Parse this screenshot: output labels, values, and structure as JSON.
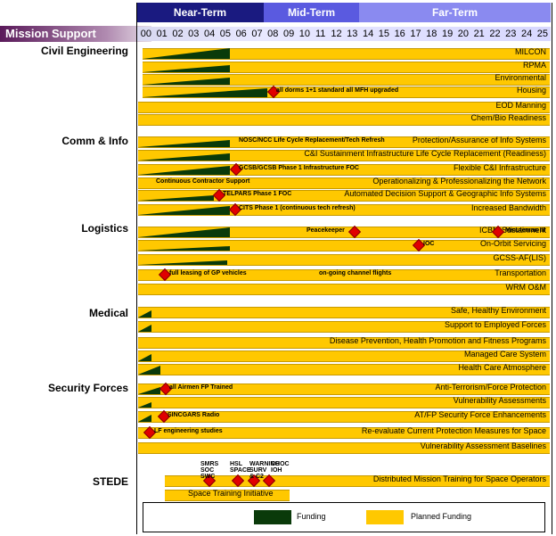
{
  "header": {
    "near_term": "Near-Term",
    "mid_term": "Mid-Term",
    "far_term": "Far-Term",
    "mission_support": "Mission Support",
    "years": [
      "00",
      "01",
      "02",
      "03",
      "04",
      "05",
      "06",
      "07",
      "08",
      "09",
      "10",
      "11",
      "12",
      "13",
      "14",
      "15",
      "16",
      "17",
      "18",
      "19",
      "20",
      "21",
      "22",
      "23",
      "24",
      "25"
    ]
  },
  "categories": {
    "civil": "Civil Engineering",
    "comm": "Comm & Info",
    "logistics": "Logistics",
    "medical": "Medical",
    "security": "Security Forces",
    "stede": "STEDE"
  },
  "rows": [
    {
      "label": "MILCON"
    },
    {
      "label": "RPMA"
    },
    {
      "label": "Environmental"
    },
    {
      "label": "Housing",
      "note": "all dorms 1+1 standard all MFH upgraded"
    },
    {
      "label": "EOD Manning"
    },
    {
      "label": "Chem/Bio Readiness"
    },
    {
      "label": "Protection/Assurance of Info Systems",
      "note": "NOSC/NCC Life Cycle Replacement/Tech Refresh"
    },
    {
      "label": "C&I Sustainment Infrastructure Life Cycle Replacement (Readiness)"
    },
    {
      "label": "Flexible C&I Infrastructure",
      "note": "GCSB/GCSB Phase 1 Infrastructure FOC"
    },
    {
      "label": "Operationalizing & Professionalizing the Network",
      "note": "Continuous Contractor Support"
    },
    {
      "label": "Automated Decision Support & Geographic Info Systems",
      "note": "TELPARS Phase 1 FOC"
    },
    {
      "label": "Increased Bandwidth",
      "note": "CITS Phase 1 (continuous tech refresh)"
    },
    {
      "label": "ICBM Sustainment",
      "note": "Peacekeeper",
      "note2": "Minuteman III"
    },
    {
      "label": "On-Orbit Servicing",
      "note": "IOC"
    },
    {
      "label": "GCSS-AF(LIS)"
    },
    {
      "label": "Transportation",
      "note": "full leasing of GP vehicles",
      "note2": "on-going channel flights"
    },
    {
      "label": "WRM O&M"
    },
    {
      "label": "Safe, Healthy Environment"
    },
    {
      "label": "Support to Employed Forces"
    },
    {
      "label": "Disease Prevention, Health Promotion and Fitness Programs"
    },
    {
      "label": "Managed Care System"
    },
    {
      "label": "Health Care Atmosphere"
    },
    {
      "label": "Anti-Terrorism/Force Protection",
      "note": "all Airmen FP Trained"
    },
    {
      "label": "Vulnerability Assessments"
    },
    {
      "label": "AT/FP Security Force Enhancements",
      "note": "SINCGARS Radio"
    },
    {
      "label": "Re-evaluate Current Protection Measures for Space",
      "note": "LF engineering studies"
    },
    {
      "label": "Vulnerability Assessment Baselines"
    },
    {
      "label": "Distributed Mission Training for Space Operators",
      "note": "SMRS SOC SWC",
      "note2": "HSL SPACE",
      "note3": "WARNING SURV & C2",
      "note4": "CHOC IOH"
    },
    {
      "label": "Space Training Initiative"
    }
  ],
  "legend": {
    "funding": "Funding",
    "planned": "Planned Funding"
  },
  "colors": {
    "near": "#1a1a7a",
    "mid": "#6a6ae0",
    "far": "#8888f0",
    "mission": "#6a2a6a",
    "funding": "#0a3a0a",
    "planned": "#ffc800",
    "milestone": "#e00000"
  }
}
